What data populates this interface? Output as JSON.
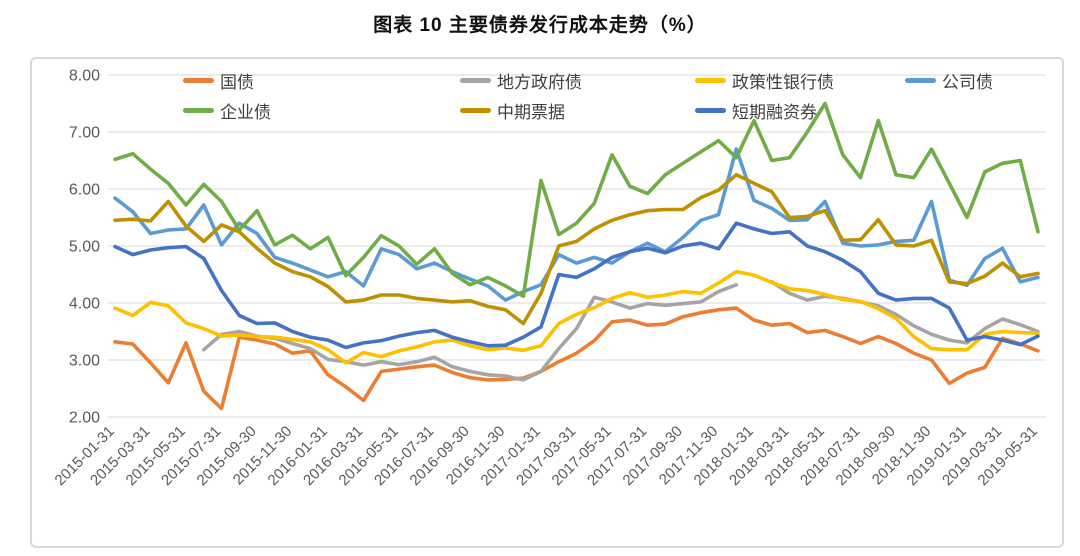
{
  "title": "图表 10 主要债券发行成本走势（%）",
  "chart_data": {
    "type": "line",
    "title": "图表 10 主要债券发行成本走势（%）",
    "xlabel": "",
    "ylabel": "",
    "ylim": [
      2,
      8
    ],
    "ytick_labels": [
      "8.00",
      "7.00",
      "6.00",
      "5.00",
      "4.00",
      "3.00",
      "2.00"
    ],
    "ytick_values": [
      8,
      7,
      6,
      5,
      4,
      3,
      2
    ],
    "grid": "horizontal",
    "legend_position": "top",
    "months_total": 53,
    "x_labels": [
      "2015-01-31",
      "2015-03-31",
      "2015-05-31",
      "2015-07-31",
      "2015-09-30",
      "2015-11-30",
      "2016-01-31",
      "2016-03-31",
      "2016-05-31",
      "2016-07-31",
      "2016-09-30",
      "2016-11-30",
      "2017-01-31",
      "2017-03-31",
      "2017-05-31",
      "2017-07-31",
      "2017-09-30",
      "2017-11-30",
      "2018-01-31",
      "2018-03-31",
      "2018-05-31",
      "2018-07-31",
      "2018-09-30",
      "2018-11-30",
      "2019-01-31",
      "2019-03-31",
      "2019-05-31"
    ],
    "x_label_every_n_months": 2,
    "series": [
      {
        "id": "treasury",
        "name": "国债",
        "color": "#ED7D31",
        "values": [
          3.32,
          3.28,
          2.95,
          2.6,
          3.3,
          2.45,
          2.15,
          3.4,
          3.35,
          3.28,
          3.12,
          3.16,
          2.74,
          2.53,
          2.29,
          2.8,
          2.84,
          2.88,
          2.91,
          2.78,
          2.69,
          2.65,
          2.66,
          2.68,
          2.8,
          2.97,
          3.12,
          3.34,
          3.67,
          3.7,
          3.61,
          3.63,
          3.76,
          3.83,
          3.88,
          3.91,
          3.7,
          3.61,
          3.64,
          3.48,
          3.52,
          3.41,
          3.29,
          3.41,
          3.29,
          3.12,
          3.0,
          2.59,
          2.77,
          2.87,
          3.38,
          3.28,
          3.16
        ]
      },
      {
        "id": "local-gov",
        "name": "地方政府债",
        "color": "#A5A5A5",
        "values": [
          null,
          null,
          null,
          null,
          null,
          3.18,
          3.45,
          3.5,
          3.42,
          3.38,
          3.29,
          3.2,
          3.01,
          2.97,
          2.91,
          2.97,
          2.92,
          2.97,
          3.05,
          2.88,
          2.8,
          2.74,
          2.72,
          2.65,
          2.8,
          3.2,
          3.55,
          4.1,
          4.02,
          3.91,
          3.99,
          3.96,
          3.99,
          4.02,
          4.2,
          4.32,
          null,
          4.37,
          4.17,
          4.05,
          4.12,
          4.08,
          4.02,
          3.95,
          3.8,
          3.6,
          3.45,
          3.35,
          3.3,
          3.55,
          3.72,
          3.62,
          3.5
        ]
      },
      {
        "id": "policy-bank",
        "name": "政策性银行债",
        "color": "#FFC000",
        "values": [
          3.91,
          3.78,
          4.01,
          3.95,
          3.65,
          3.55,
          3.42,
          3.44,
          3.41,
          3.4,
          3.36,
          3.32,
          3.18,
          2.95,
          3.13,
          3.06,
          3.16,
          3.23,
          3.32,
          3.35,
          3.25,
          3.18,
          3.21,
          3.17,
          3.25,
          3.64,
          3.8,
          3.92,
          4.08,
          4.18,
          4.1,
          4.14,
          4.2,
          4.17,
          4.35,
          4.55,
          4.49,
          4.36,
          4.25,
          4.22,
          4.15,
          4.06,
          4.03,
          3.9,
          3.73,
          3.41,
          3.2,
          3.18,
          3.18,
          3.45,
          3.5,
          3.48,
          3.47
        ]
      },
      {
        "id": "corporate",
        "name": "公司债",
        "color": "#5B9BD5",
        "values": [
          5.84,
          5.6,
          5.22,
          5.28,
          5.3,
          5.72,
          5.02,
          5.4,
          5.22,
          4.8,
          4.7,
          4.58,
          4.46,
          4.55,
          4.3,
          4.95,
          4.85,
          4.6,
          4.7,
          4.55,
          4.42,
          4.3,
          4.05,
          4.2,
          4.32,
          4.85,
          4.7,
          4.8,
          4.7,
          4.9,
          5.05,
          4.9,
          5.15,
          5.45,
          5.55,
          6.7,
          5.8,
          5.66,
          5.45,
          5.46,
          5.78,
          5.05,
          5.0,
          5.02,
          5.08,
          5.1,
          5.78,
          4.4,
          4.31,
          4.78,
          4.96,
          4.37,
          4.45
        ]
      },
      {
        "id": "enterprise",
        "name": "企业债",
        "color": "#70AD47",
        "values": [
          6.52,
          6.62,
          6.35,
          6.1,
          5.72,
          6.08,
          5.78,
          5.28,
          5.62,
          5.02,
          5.19,
          4.95,
          5.15,
          4.48,
          4.8,
          5.18,
          5.0,
          4.68,
          4.95,
          4.52,
          4.32,
          4.45,
          4.3,
          4.12,
          6.15,
          5.2,
          5.4,
          5.75,
          6.6,
          6.05,
          5.92,
          6.25,
          6.45,
          6.65,
          6.85,
          6.55,
          7.2,
          6.5,
          6.55,
          7.0,
          7.5,
          6.6,
          6.2,
          7.2,
          6.25,
          6.2,
          6.7,
          6.1,
          5.5,
          6.3,
          6.45,
          6.5,
          5.25
        ]
      },
      {
        "id": "mtn",
        "name": "中期票据",
        "color": "#BF9000",
        "values": [
          5.45,
          5.47,
          5.44,
          5.78,
          5.35,
          5.08,
          5.37,
          5.25,
          4.96,
          4.7,
          4.55,
          4.46,
          4.29,
          4.02,
          4.05,
          4.14,
          4.14,
          4.08,
          4.05,
          4.02,
          4.04,
          3.94,
          3.88,
          3.64,
          4.17,
          5.0,
          5.08,
          5.3,
          5.45,
          5.55,
          5.62,
          5.64,
          5.64,
          5.85,
          5.98,
          6.25,
          6.1,
          5.95,
          5.5,
          5.52,
          5.62,
          5.1,
          5.11,
          5.46,
          5.02,
          5.0,
          5.1,
          4.37,
          4.34,
          4.47,
          4.7,
          4.46,
          4.52
        ]
      },
      {
        "id": "scp",
        "name": "短期融资券",
        "color": "#4472C4",
        "values": [
          4.99,
          4.85,
          4.93,
          4.97,
          4.99,
          4.78,
          4.22,
          3.78,
          3.64,
          3.65,
          3.5,
          3.4,
          3.35,
          3.22,
          3.3,
          3.34,
          3.42,
          3.48,
          3.52,
          3.4,
          3.32,
          3.25,
          3.26,
          3.4,
          3.58,
          4.5,
          4.45,
          4.6,
          4.8,
          4.9,
          4.96,
          4.88,
          5.0,
          5.05,
          4.95,
          5.4,
          5.3,
          5.22,
          5.25,
          5.0,
          4.9,
          4.75,
          4.55,
          4.17,
          4.05,
          4.08,
          4.08,
          3.91,
          3.35,
          3.41,
          3.35,
          3.27,
          3.42
        ]
      }
    ]
  }
}
